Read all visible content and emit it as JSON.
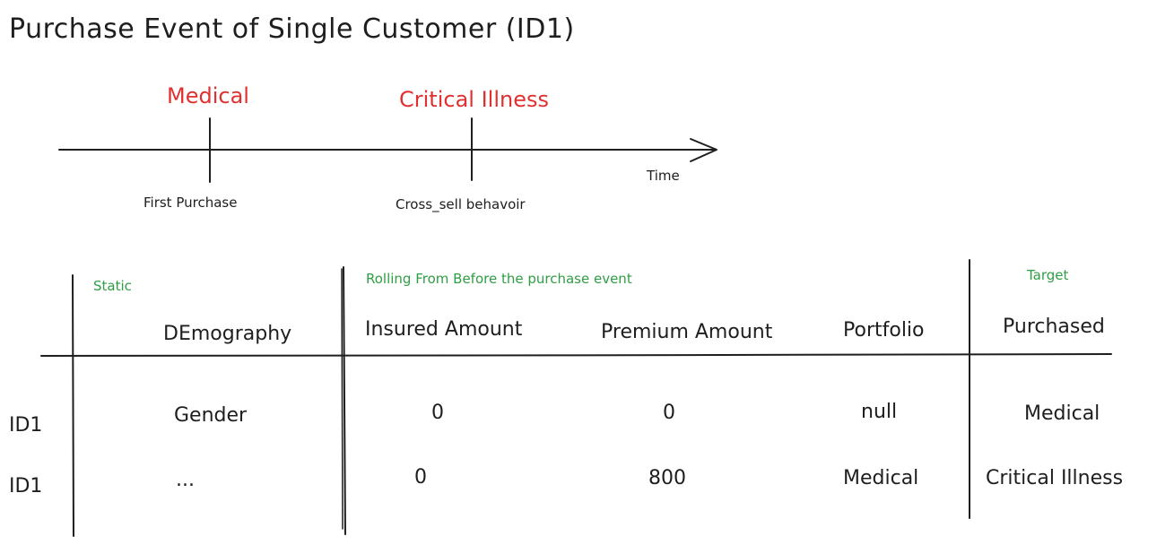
{
  "title": "Purchase Event of  Single Customer (ID1)",
  "colors": {
    "ink": "#1e1e1e",
    "event": "#e03131",
    "section": "#2f9e44"
  },
  "timeline": {
    "events": [
      {
        "label": "Medical",
        "caption": "First Purchase"
      },
      {
        "label": "Critical Illness",
        "caption": "Cross_sell behavoir"
      }
    ],
    "axis_label": "Time"
  },
  "table": {
    "sections": {
      "static": "Static",
      "rolling": "Rolling From Before the purchase event",
      "target": "Target"
    },
    "headers": {
      "demography": "DEmography",
      "insured_amount": "Insured Amount",
      "premium_amount": "Premium Amount",
      "portfolio": "Portfolio",
      "purchased": "Purchased"
    },
    "rows": [
      {
        "id": "ID1",
        "demography": "Gender",
        "insured_amount": "0",
        "premium_amount": "0",
        "portfolio": "null",
        "purchased": "Medical"
      },
      {
        "id": "ID1",
        "demography": "...",
        "insured_amount": "0",
        "premium_amount": "800",
        "portfolio": "Medical",
        "purchased": "Critical Illness"
      }
    ]
  }
}
